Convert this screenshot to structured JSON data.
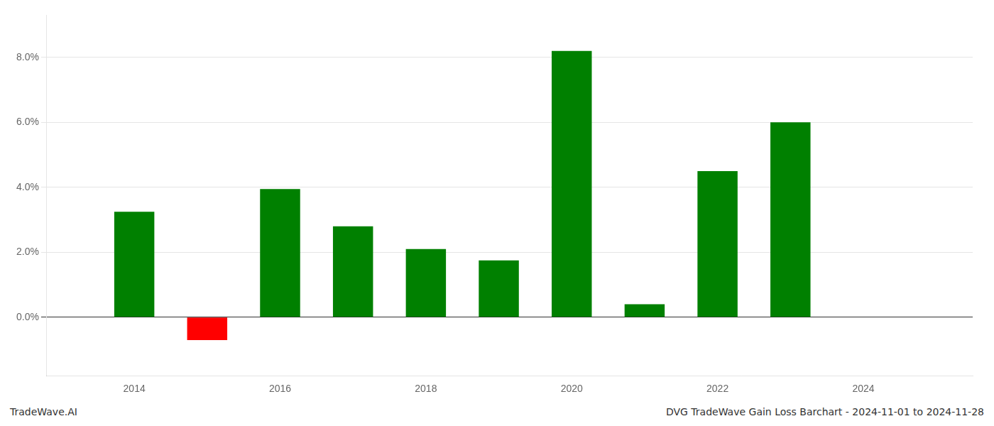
{
  "chart_data": {
    "type": "bar",
    "annotations": [
      "TradeWave.AI",
      "DVG TradeWave Gain Loss Barchart - 2024-11-01 to 2024-11-28"
    ],
    "x": [
      2014,
      2015,
      2016,
      2017,
      2018,
      2019,
      2020,
      2021,
      2022,
      2023
    ],
    "values": [
      0.0325,
      -0.007,
      0.0395,
      0.028,
      0.021,
      0.0175,
      0.082,
      0.004,
      0.045,
      0.06
    ],
    "colors": [
      "#008000",
      "#ff0000",
      "#008000",
      "#008000",
      "#008000",
      "#008000",
      "#008000",
      "#008000",
      "#008000",
      "#008000"
    ],
    "xlim": [
      2012.8,
      2025.5
    ],
    "xticks": [
      2014,
      2016,
      2018,
      2020,
      2022,
      2024
    ],
    "ylim": [
      -0.018,
      0.093
    ],
    "yticks": [
      {
        "value": 0.0,
        "label": "0.0%"
      },
      {
        "value": 0.02,
        "label": "2.0%"
      },
      {
        "value": 0.04,
        "label": "4.0%"
      },
      {
        "value": 0.06,
        "label": "6.0%"
      },
      {
        "value": 0.08,
        "label": "8.0%"
      }
    ],
    "grid": "y"
  }
}
